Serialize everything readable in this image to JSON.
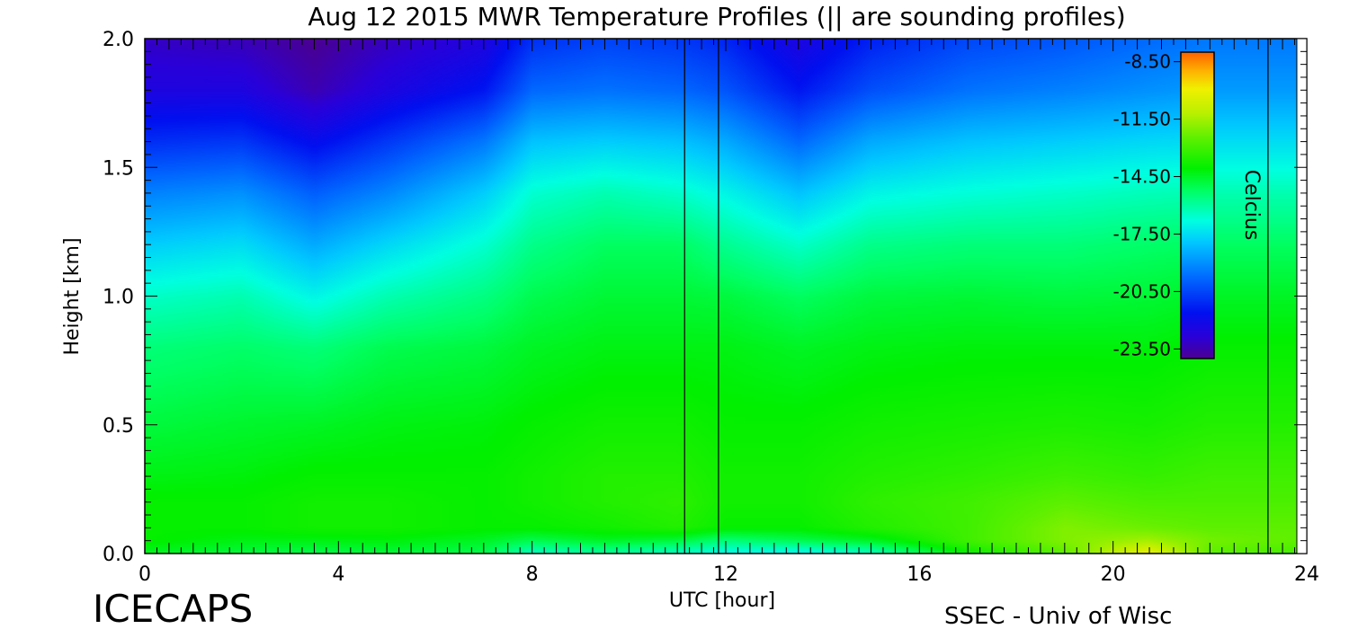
{
  "chart_data": {
    "type": "heatmap",
    "title": "Aug 12 2015 MWR Temperature Profiles (|| are sounding profiles)",
    "xlabel": "UTC [hour]",
    "ylabel": "Height [km]",
    "xlim": [
      0,
      24
    ],
    "ylim": [
      0,
      2.0
    ],
    "x_ticks": [
      "0",
      "4",
      "8",
      "12",
      "16",
      "20",
      "24"
    ],
    "y_ticks": [
      "0.0",
      "0.5",
      "1.0",
      "1.5",
      "2.0"
    ],
    "colorbar": {
      "label": "Celcius",
      "range": [
        -24.0,
        -8.0
      ],
      "ticks": [
        "-8.50",
        "-11.50",
        "-14.50",
        "-17.50",
        "-20.50",
        "-23.50"
      ]
    },
    "sounding_times": [
      11.15,
      11.85,
      23.2
    ],
    "temperature_grid": {
      "heights_km": [
        0.0,
        0.05,
        0.1,
        0.2,
        0.3,
        0.5,
        0.8,
        1.0,
        1.2,
        1.4,
        1.6,
        1.8,
        2.0
      ],
      "times_hour": [
        0,
        2,
        3.5,
        5,
        7,
        8,
        9.5,
        11,
        12,
        13.5,
        15,
        17,
        19,
        20.7,
        22,
        24
      ],
      "values_c": [
        [
          -14.5,
          -14.8,
          -15.0,
          -14.8,
          -15.0,
          -16.5,
          -16.0,
          -16.5,
          -17.0,
          -17.2,
          -16.5,
          -14.0,
          -12.5,
          -10.0,
          -12.5,
          -13.0
        ],
        [
          -14.0,
          -14.3,
          -14.3,
          -14.2,
          -14.5,
          -15.0,
          -14.5,
          -14.8,
          -15.5,
          -15.0,
          -14.5,
          -13.0,
          -12.0,
          -11.5,
          -12.2,
          -12.5
        ],
        [
          -14.0,
          -14.0,
          -13.8,
          -13.8,
          -14.0,
          -14.0,
          -13.8,
          -13.5,
          -14.0,
          -14.0,
          -13.5,
          -13.0,
          -12.0,
          -12.3,
          -12.5,
          -12.5
        ],
        [
          -14.0,
          -14.0,
          -13.8,
          -13.8,
          -14.0,
          -13.8,
          -13.5,
          -13.3,
          -13.8,
          -13.8,
          -13.3,
          -13.0,
          -12.5,
          -12.8,
          -12.8,
          -12.8
        ],
        [
          -14.3,
          -14.2,
          -14.0,
          -14.0,
          -14.0,
          -13.8,
          -13.5,
          -13.5,
          -13.8,
          -13.8,
          -13.5,
          -13.3,
          -13.0,
          -13.2,
          -13.0,
          -13.0
        ],
        [
          -14.8,
          -14.6,
          -14.5,
          -14.3,
          -14.2,
          -14.0,
          -13.8,
          -13.8,
          -14.0,
          -14.0,
          -13.8,
          -13.7,
          -13.6,
          -13.7,
          -13.5,
          -13.5
        ],
        [
          -15.5,
          -15.3,
          -15.5,
          -15.0,
          -14.8,
          -14.5,
          -14.3,
          -14.3,
          -14.3,
          -14.5,
          -14.3,
          -14.2,
          -14.2,
          -14.2,
          -14.0,
          -14.0
        ],
        [
          -16.5,
          -16.2,
          -17.0,
          -16.2,
          -15.6,
          -15.0,
          -14.7,
          -14.7,
          -14.8,
          -15.2,
          -14.8,
          -14.7,
          -14.8,
          -14.7,
          -14.5,
          -14.5
        ],
        [
          -17.8,
          -17.5,
          -18.5,
          -17.6,
          -16.6,
          -15.7,
          -15.2,
          -15.2,
          -15.8,
          -16.5,
          -15.7,
          -15.5,
          -15.5,
          -15.3,
          -15.2,
          -15.2
        ],
        [
          -19.3,
          -19.0,
          -20.0,
          -19.2,
          -17.8,
          -16.6,
          -16.2,
          -16.5,
          -17.0,
          -18.0,
          -17.0,
          -16.7,
          -16.5,
          -16.3,
          -16.2,
          -16.2
        ],
        [
          -21.0,
          -20.8,
          -21.8,
          -20.8,
          -19.5,
          -18.0,
          -17.8,
          -18.0,
          -18.5,
          -19.8,
          -18.5,
          -18.0,
          -17.8,
          -17.6,
          -17.5,
          -17.5
        ],
        [
          -22.5,
          -22.5,
          -23.5,
          -22.5,
          -21.5,
          -19.8,
          -19.6,
          -19.8,
          -20.2,
          -21.5,
          -20.3,
          -19.6,
          -19.3,
          -19.0,
          -18.8,
          -18.8
        ],
        [
          -23.2,
          -23.4,
          -24.0,
          -23.3,
          -22.6,
          -21.0,
          -20.6,
          -20.8,
          -21.2,
          -22.5,
          -21.3,
          -20.5,
          -20.2,
          -19.8,
          -19.5,
          -19.5
        ]
      ]
    }
  },
  "branding": {
    "left": "ICECAPS",
    "right": "SSEC - Univ of Wisc"
  }
}
